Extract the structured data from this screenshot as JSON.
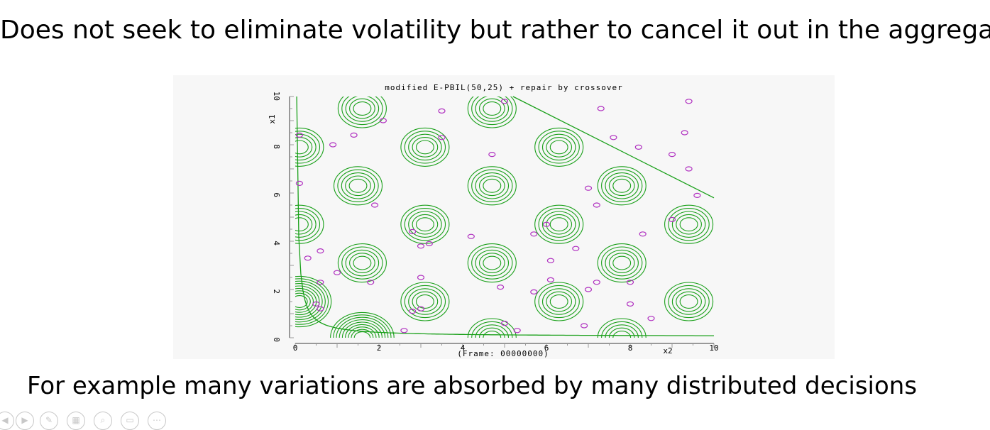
{
  "slide": {
    "headline": "Does not seek to eliminate volatility but rather to cancel it out in the aggregate.",
    "caption": "For example many variations are absorbed by many distributed decisions"
  },
  "chart_data": {
    "type": "scatter",
    "title": "modified E-PBIL(50,25) + repair by crossover",
    "xlabel": "x2",
    "ylabel": "x1",
    "footer": "(Frame: 00000000)",
    "xlim": [
      0,
      10
    ],
    "ylim": [
      0,
      10
    ],
    "x_ticks": [
      "0",
      "2",
      "4",
      "6",
      "8",
      "10"
    ],
    "y_ticks": [
      "0",
      "2",
      "4",
      "6",
      "8",
      "10"
    ],
    "colors": {
      "contour": "#1aa01a",
      "points": "#b030c0"
    },
    "constraint_line": [
      [
        5.2,
        10
      ],
      [
        10,
        5.8
      ]
    ],
    "contour_centers": [
      [
        1.6,
        9.5
      ],
      [
        4.7,
        9.5
      ],
      [
        0.1,
        7.9
      ],
      [
        3.1,
        7.9
      ],
      [
        6.3,
        7.9
      ],
      [
        1.5,
        6.3
      ],
      [
        4.7,
        6.3
      ],
      [
        7.8,
        6.3
      ],
      [
        0.1,
        4.7
      ],
      [
        3.1,
        4.7
      ],
      [
        6.3,
        4.7
      ],
      [
        9.4,
        4.7
      ],
      [
        1.6,
        3.1
      ],
      [
        4.7,
        3.1
      ],
      [
        7.8,
        3.1
      ],
      [
        0.1,
        1.5
      ],
      [
        3.1,
        1.5
      ],
      [
        6.3,
        1.5
      ],
      [
        9.4,
        1.5
      ],
      [
        1.6,
        0.0
      ],
      [
        4.7,
        0.0
      ],
      [
        7.8,
        0.0
      ]
    ],
    "points": [
      [
        0.1,
        8.4
      ],
      [
        0.9,
        8.0
      ],
      [
        1.4,
        8.4
      ],
      [
        2.1,
        9.0
      ],
      [
        3.5,
        9.4
      ],
      [
        3.5,
        8.3
      ],
      [
        5.0,
        9.8
      ],
      [
        7.3,
        9.5
      ],
      [
        9.4,
        9.8
      ],
      [
        4.7,
        7.6
      ],
      [
        7.6,
        8.3
      ],
      [
        8.2,
        7.9
      ],
      [
        9.0,
        7.6
      ],
      [
        9.3,
        8.5
      ],
      [
        9.4,
        7.0
      ],
      [
        0.1,
        6.4
      ],
      [
        1.9,
        5.5
      ],
      [
        7.0,
        6.2
      ],
      [
        9.6,
        5.9
      ],
      [
        7.2,
        5.5
      ],
      [
        9.0,
        4.9
      ],
      [
        2.8,
        4.4
      ],
      [
        5.7,
        4.3
      ],
      [
        6.0,
        4.7
      ],
      [
        8.3,
        4.3
      ],
      [
        4.2,
        4.2
      ],
      [
        3.2,
        3.9
      ],
      [
        3.0,
        3.8
      ],
      [
        6.7,
        3.7
      ],
      [
        0.6,
        3.6
      ],
      [
        0.3,
        3.3
      ],
      [
        6.1,
        3.2
      ],
      [
        1.0,
        2.7
      ],
      [
        7.2,
        2.3
      ],
      [
        3.0,
        2.5
      ],
      [
        1.8,
        2.3
      ],
      [
        0.6,
        2.3
      ],
      [
        4.9,
        2.1
      ],
      [
        6.1,
        2.4
      ],
      [
        5.7,
        1.9
      ],
      [
        7.0,
        2.0
      ],
      [
        0.5,
        1.4
      ],
      [
        0.6,
        1.2
      ],
      [
        8.0,
        1.4
      ],
      [
        3.0,
        1.2
      ],
      [
        2.8,
        1.1
      ],
      [
        8.5,
        0.8
      ],
      [
        2.6,
        0.3
      ],
      [
        5.0,
        0.6
      ],
      [
        5.3,
        0.3
      ],
      [
        6.9,
        0.5
      ],
      [
        8.0,
        2.3
      ]
    ]
  }
}
